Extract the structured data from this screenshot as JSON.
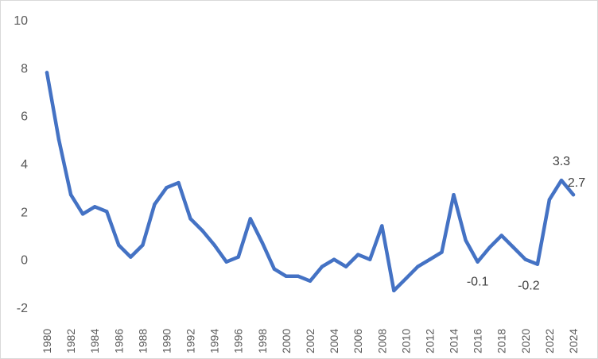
{
  "chart_data": {
    "type": "line",
    "title": "",
    "xlabel": "",
    "ylabel": "",
    "x": [
      1980,
      1981,
      1982,
      1983,
      1984,
      1985,
      1986,
      1987,
      1988,
      1989,
      1990,
      1991,
      1992,
      1993,
      1994,
      1995,
      1996,
      1997,
      1998,
      1999,
      2000,
      2001,
      2002,
      2003,
      2004,
      2005,
      2006,
      2007,
      2008,
      2009,
      2010,
      2011,
      2012,
      2013,
      2014,
      2015,
      2016,
      2017,
      2018,
      2019,
      2020,
      2021,
      2022,
      2023,
      2024
    ],
    "xtick_labels": [
      "1980",
      "1982",
      "1984",
      "1986",
      "1988",
      "1990",
      "1992",
      "1994",
      "1996",
      "1998",
      "2000",
      "2002",
      "2004",
      "2006",
      "2008",
      "2010",
      "2012",
      "2014",
      "2016",
      "2018",
      "2020",
      "2022",
      "2024"
    ],
    "series": [
      {
        "values": [
          7.8,
          5.0,
          2.7,
          1.9,
          2.2,
          2.0,
          0.6,
          0.1,
          0.6,
          2.3,
          3.0,
          3.2,
          1.7,
          1.2,
          0.6,
          -0.1,
          0.1,
          1.7,
          0.7,
          -0.4,
          -0.7,
          -0.7,
          -0.9,
          -0.3,
          0.0,
          -0.3,
          0.2,
          0.0,
          1.4,
          -1.3,
          -0.8,
          -0.3,
          0.0,
          0.3,
          2.7,
          0.8,
          -0.1,
          0.5,
          1.0,
          0.5,
          0.0,
          -0.2,
          2.5,
          3.3,
          2.7
        ],
        "color": "#4472C4"
      }
    ],
    "ylim": [
      -2,
      10
    ],
    "yticks": [
      "-2",
      "0",
      "2",
      "4",
      "6",
      "8",
      "10"
    ],
    "grid": false,
    "legend": "none",
    "data_labels": [
      {
        "x": 2016,
        "text": "-0.1"
      },
      {
        "x": 2021,
        "text": "-0.2"
      },
      {
        "x": 2023,
        "text": "3.3"
      },
      {
        "x": 2024,
        "text": "2.7"
      }
    ]
  }
}
